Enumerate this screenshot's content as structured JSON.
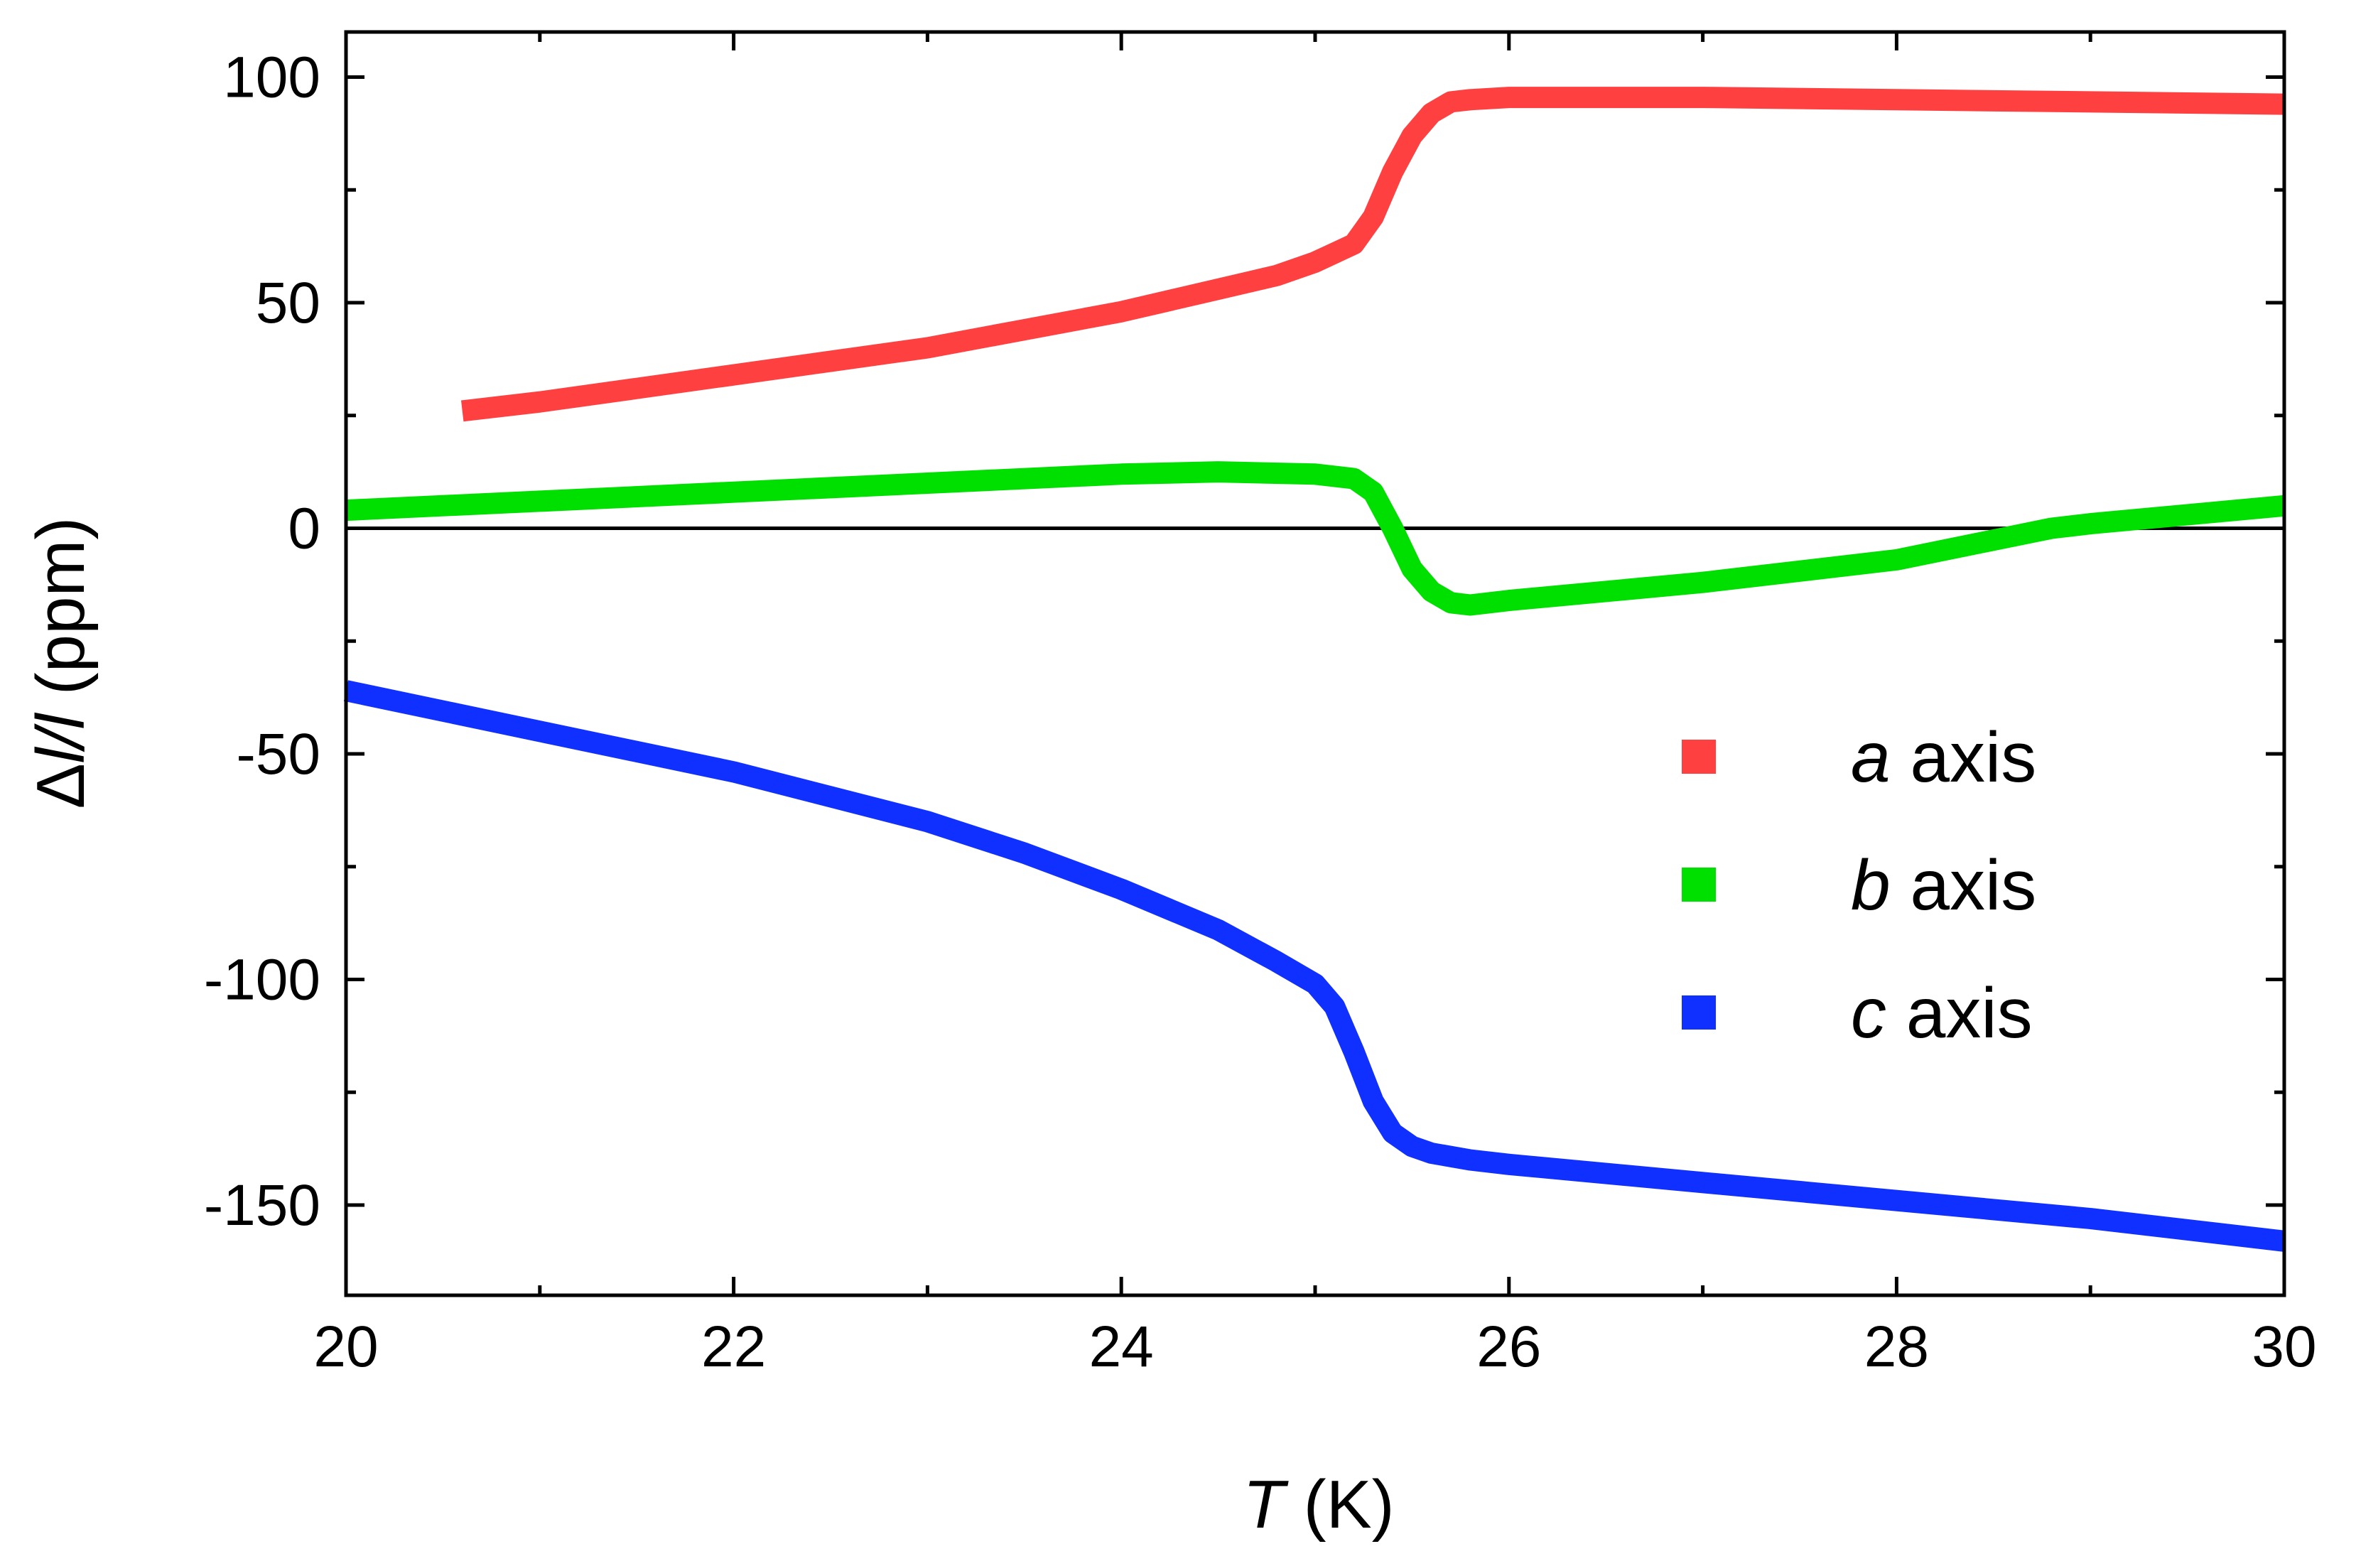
{
  "chart_data": {
    "type": "line",
    "xlabel": {
      "symbol": "T",
      "unit": " (K)"
    },
    "ylabel": {
      "prefix": "Δ",
      "symbol": "l/l",
      "unit": " (ppm)"
    },
    "xlim": [
      20,
      30
    ],
    "ylim": [
      -170,
      110
    ],
    "xticks": [
      20,
      22,
      24,
      26,
      28,
      30
    ],
    "xtick_labels": [
      "20",
      "22",
      "24",
      "26",
      "28",
      "30"
    ],
    "yticks": [
      100,
      50,
      0,
      -50,
      -100,
      -150
    ],
    "ytick_labels": [
      "100",
      "50",
      "0",
      "-50",
      "-100",
      "-150"
    ],
    "zero_line": true,
    "legend_position": "right",
    "series": [
      {
        "name": "a",
        "label_suffix": " axis",
        "color": "#ff4040",
        "x": [
          20.6,
          21.0,
          21.5,
          22.0,
          22.5,
          23.0,
          23.5,
          24.0,
          24.5,
          24.8,
          25.0,
          25.1,
          25.2,
          25.3,
          25.4,
          25.5,
          25.6,
          25.7,
          25.8,
          26.0,
          26.5,
          27.0,
          28.0,
          29.0,
          30.0
        ],
        "y": [
          26,
          28,
          31,
          34,
          37,
          40,
          44,
          48,
          53,
          56,
          59,
          61,
          63,
          69,
          79,
          87,
          92,
          94.5,
          95,
          95.5,
          95.5,
          95.5,
          95,
          94.5,
          94
        ]
      },
      {
        "name": "b",
        "label_suffix": " axis",
        "color": "#00e000",
        "x": [
          20.0,
          21.0,
          22.0,
          23.0,
          24.0,
          24.5,
          25.0,
          25.2,
          25.3,
          25.4,
          25.5,
          25.6,
          25.7,
          25.8,
          26.0,
          27.0,
          28.0,
          28.8,
          29.0,
          30.0
        ],
        "y": [
          4,
          6,
          8,
          10,
          12,
          12.5,
          12,
          11,
          8,
          0,
          -9,
          -14,
          -16.5,
          -17,
          -16,
          -12,
          -7,
          0,
          1,
          5
        ]
      },
      {
        "name": "c",
        "label_suffix": " axis",
        "color": "#1030ff",
        "x": [
          20.0,
          21.0,
          22.0,
          23.0,
          23.5,
          24.0,
          24.5,
          24.8,
          25.0,
          25.1,
          25.2,
          25.3,
          25.4,
          25.5,
          25.6,
          25.8,
          26.0,
          27.0,
          28.0,
          29.0,
          30.0
        ],
        "y": [
          -36,
          -45,
          -54,
          -65,
          -72,
          -80,
          -89,
          -96,
          -101,
          -106,
          -116,
          -127,
          -134,
          -137,
          -138.5,
          -140,
          -141,
          -145,
          -149,
          -153,
          -158
        ]
      }
    ]
  }
}
